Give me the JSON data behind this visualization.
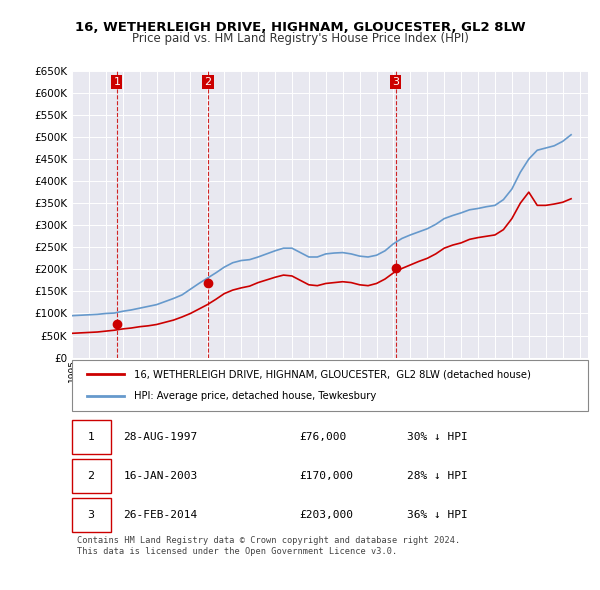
{
  "title": "16, WETHERLEIGH DRIVE, HIGHNAM, GLOUCESTER, GL2 8LW",
  "subtitle": "Price paid vs. HM Land Registry's House Price Index (HPI)",
  "ylim": [
    0,
    650000
  ],
  "yticks": [
    0,
    50000,
    100000,
    150000,
    200000,
    250000,
    300000,
    350000,
    400000,
    450000,
    500000,
    550000,
    600000,
    650000
  ],
  "ylabel_format": "£{0}K",
  "background_color": "#ffffff",
  "plot_bg_color": "#e8e8f0",
  "grid_color": "#ffffff",
  "legend_label_red": "16, WETHERLEIGH DRIVE, HIGHNAM, GLOUCESTER,  GL2 8LW (detached house)",
  "legend_label_blue": "HPI: Average price, detached house, Tewkesbury",
  "footer": "Contains HM Land Registry data © Crown copyright and database right 2024.\nThis data is licensed under the Open Government Licence v3.0.",
  "sales": [
    {
      "num": 1,
      "date": "28-AUG-1997",
      "price": 76000,
      "pct": "30%",
      "dir": "↓",
      "x": 1997.65
    },
    {
      "num": 2,
      "date": "16-JAN-2003",
      "price": 170000,
      "pct": "28%",
      "dir": "↓",
      "x": 2003.04
    },
    {
      "num": 3,
      "date": "26-FEB-2014",
      "price": 203000,
      "pct": "36%",
      "dir": "↓",
      "x": 2014.14
    }
  ],
  "red_line_color": "#cc0000",
  "blue_line_color": "#6699cc",
  "dashed_vline_color": "#cc0000",
  "sale_marker_color": "#cc0000",
  "hpi_data_x": [
    1995,
    1995.5,
    1996,
    1996.5,
    1997,
    1997.5,
    1998,
    1998.5,
    1999,
    1999.5,
    2000,
    2000.5,
    2001,
    2001.5,
    2002,
    2002.5,
    2003,
    2003.5,
    2004,
    2004.5,
    2005,
    2005.5,
    2006,
    2006.5,
    2007,
    2007.5,
    2008,
    2008.5,
    2009,
    2009.5,
    2010,
    2010.5,
    2011,
    2011.5,
    2012,
    2012.5,
    2013,
    2013.5,
    2014,
    2014.5,
    2015,
    2015.5,
    2016,
    2016.5,
    2017,
    2017.5,
    2018,
    2018.5,
    2019,
    2019.5,
    2020,
    2020.5,
    2021,
    2021.5,
    2022,
    2022.5,
    2023,
    2023.5,
    2024,
    2024.5
  ],
  "hpi_data_y": [
    95000,
    96000,
    97000,
    98000,
    100000,
    101000,
    105000,
    108000,
    112000,
    116000,
    120000,
    127000,
    134000,
    142000,
    155000,
    168000,
    180000,
    192000,
    205000,
    215000,
    220000,
    222000,
    228000,
    235000,
    242000,
    248000,
    248000,
    238000,
    228000,
    228000,
    235000,
    237000,
    238000,
    235000,
    230000,
    228000,
    232000,
    242000,
    258000,
    270000,
    278000,
    285000,
    292000,
    302000,
    315000,
    322000,
    328000,
    335000,
    338000,
    342000,
    345000,
    358000,
    382000,
    420000,
    450000,
    470000,
    475000,
    480000,
    490000,
    505000
  ],
  "red_data_x": [
    1995,
    1995.5,
    1996,
    1996.5,
    1997,
    1997.5,
    1998,
    1998.5,
    1999,
    1999.5,
    2000,
    2000.5,
    2001,
    2001.5,
    2002,
    2002.5,
    2003,
    2003.5,
    2004,
    2004.5,
    2005,
    2005.5,
    2006,
    2006.5,
    2007,
    2007.5,
    2008,
    2008.5,
    2009,
    2009.5,
    2010,
    2010.5,
    2011,
    2011.5,
    2012,
    2012.5,
    2013,
    2013.5,
    2014,
    2014.5,
    2015,
    2015.5,
    2016,
    2016.5,
    2017,
    2017.5,
    2018,
    2018.5,
    2019,
    2019.5,
    2020,
    2020.5,
    2021,
    2021.5,
    2022,
    2022.5,
    2023,
    2023.5,
    2024,
    2024.5
  ],
  "red_data_y": [
    55000,
    56000,
    57000,
    58000,
    60000,
    62000,
    65000,
    67000,
    70000,
    72000,
    75000,
    80000,
    85000,
    92000,
    100000,
    110000,
    120000,
    132000,
    145000,
    153000,
    158000,
    162000,
    170000,
    176000,
    182000,
    187000,
    185000,
    175000,
    165000,
    163000,
    168000,
    170000,
    172000,
    170000,
    165000,
    163000,
    168000,
    178000,
    192000,
    202000,
    210000,
    218000,
    225000,
    235000,
    248000,
    255000,
    260000,
    268000,
    272000,
    275000,
    278000,
    290000,
    315000,
    350000,
    375000,
    345000,
    345000,
    348000,
    352000,
    360000
  ]
}
